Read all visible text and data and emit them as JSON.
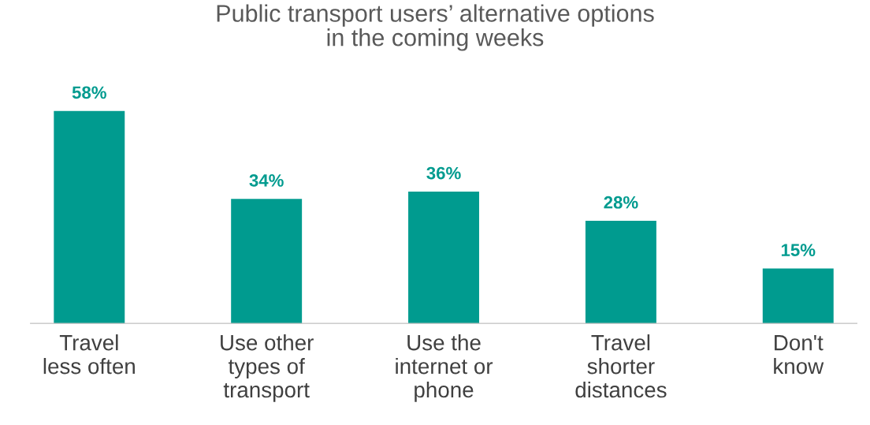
{
  "chart_data": {
    "type": "bar",
    "title": "Public transport users’ alternative options\nin the coming weeks",
    "categories": [
      "Travel\nless often",
      "Use other\ntypes of\ntransport",
      "Use the\ninternet or\nphone",
      "Travel\nshorter\ndistances",
      "Don't\nknow"
    ],
    "values": [
      58,
      34,
      36,
      28,
      15
    ],
    "value_labels": [
      "58%",
      "34%",
      "36%",
      "28%",
      "15%"
    ],
    "color": "#009b8f",
    "grid": false,
    "legend": false
  }
}
